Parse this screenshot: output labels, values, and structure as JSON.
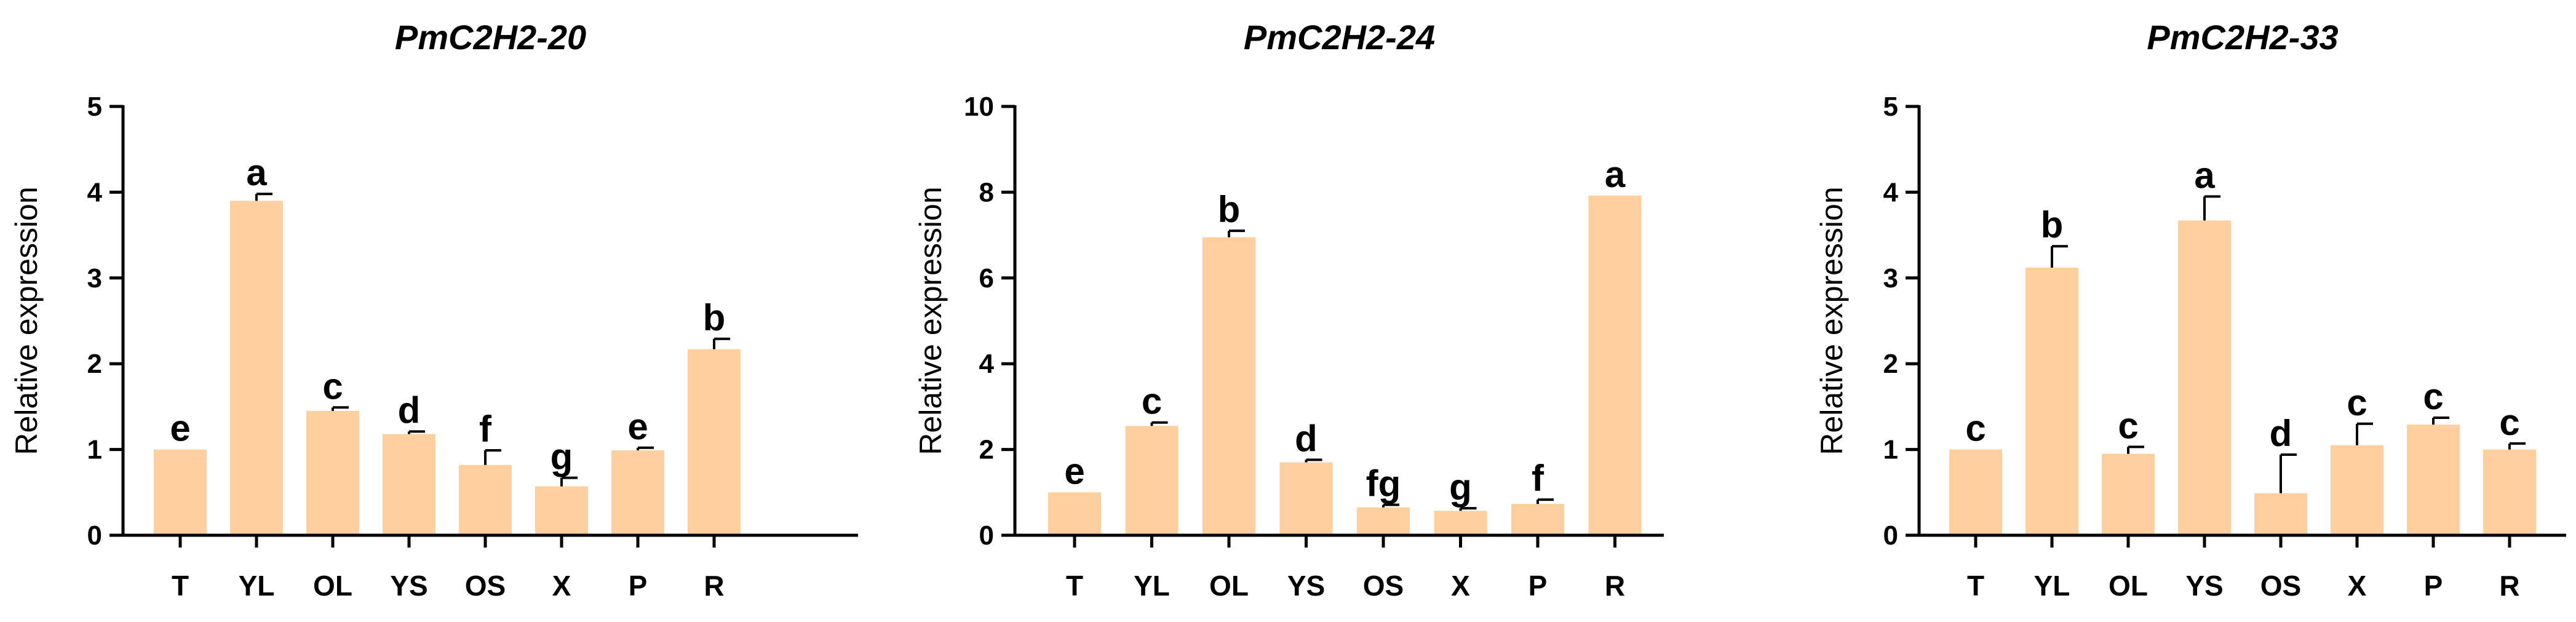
{
  "chart_data": [
    {
      "type": "bar",
      "title": "PmC2H2-20",
      "xlabel": "",
      "ylabel": "Relative expression",
      "ylim": [
        0,
        5
      ],
      "yticks": [
        "0",
        "1",
        "2",
        "3",
        "4",
        "5"
      ],
      "categories": [
        "T",
        "YL",
        "OL",
        "YS",
        "OS",
        "X",
        "P",
        "R"
      ],
      "values": [
        1.0,
        3.9,
        1.45,
        1.18,
        0.82,
        0.57,
        0.99,
        2.17
      ],
      "errors": [
        0.0,
        0.08,
        0.04,
        0.03,
        0.17,
        0.1,
        0.03,
        0.12
      ],
      "letters": [
        "e",
        "a",
        "c",
        "d",
        "f",
        "g",
        "e",
        "b"
      ],
      "bar_color": "#FFCF9E"
    },
    {
      "type": "bar",
      "title": "PmC2H2-24",
      "xlabel": "",
      "ylabel": "Relative expression",
      "ylim": [
        0,
        10
      ],
      "yticks": [
        "0",
        "2",
        "4",
        "6",
        "8",
        "10"
      ],
      "categories": [
        "T",
        "YL",
        "OL",
        "YS",
        "OS",
        "X",
        "P",
        "R"
      ],
      "values": [
        1.0,
        2.55,
        6.95,
        1.7,
        0.65,
        0.57,
        0.73,
        7.92
      ],
      "errors": [
        0.0,
        0.08,
        0.15,
        0.06,
        0.06,
        0.06,
        0.1,
        0.0
      ],
      "letters": [
        "e",
        "c",
        "b",
        "d",
        "fg",
        "g",
        "f",
        "a"
      ],
      "bar_color": "#FFCF9E"
    },
    {
      "type": "bar",
      "title": "PmC2H2-33",
      "xlabel": "",
      "ylabel": "Relative expression",
      "ylim": [
        0,
        5
      ],
      "yticks": [
        "0",
        "1",
        "2",
        "3",
        "4",
        "5"
      ],
      "categories": [
        "T",
        "YL",
        "OL",
        "YS",
        "OS",
        "X",
        "P",
        "R"
      ],
      "values": [
        1.0,
        3.12,
        0.95,
        3.67,
        0.49,
        1.05,
        1.29,
        1.0
      ],
      "errors": [
        0.0,
        0.25,
        0.08,
        0.28,
        0.45,
        0.25,
        0.08,
        0.07
      ],
      "letters": [
        "c",
        "b",
        "c",
        "a",
        "d",
        "c",
        "c",
        "c"
      ],
      "bar_color": "#FFCF9E"
    }
  ]
}
